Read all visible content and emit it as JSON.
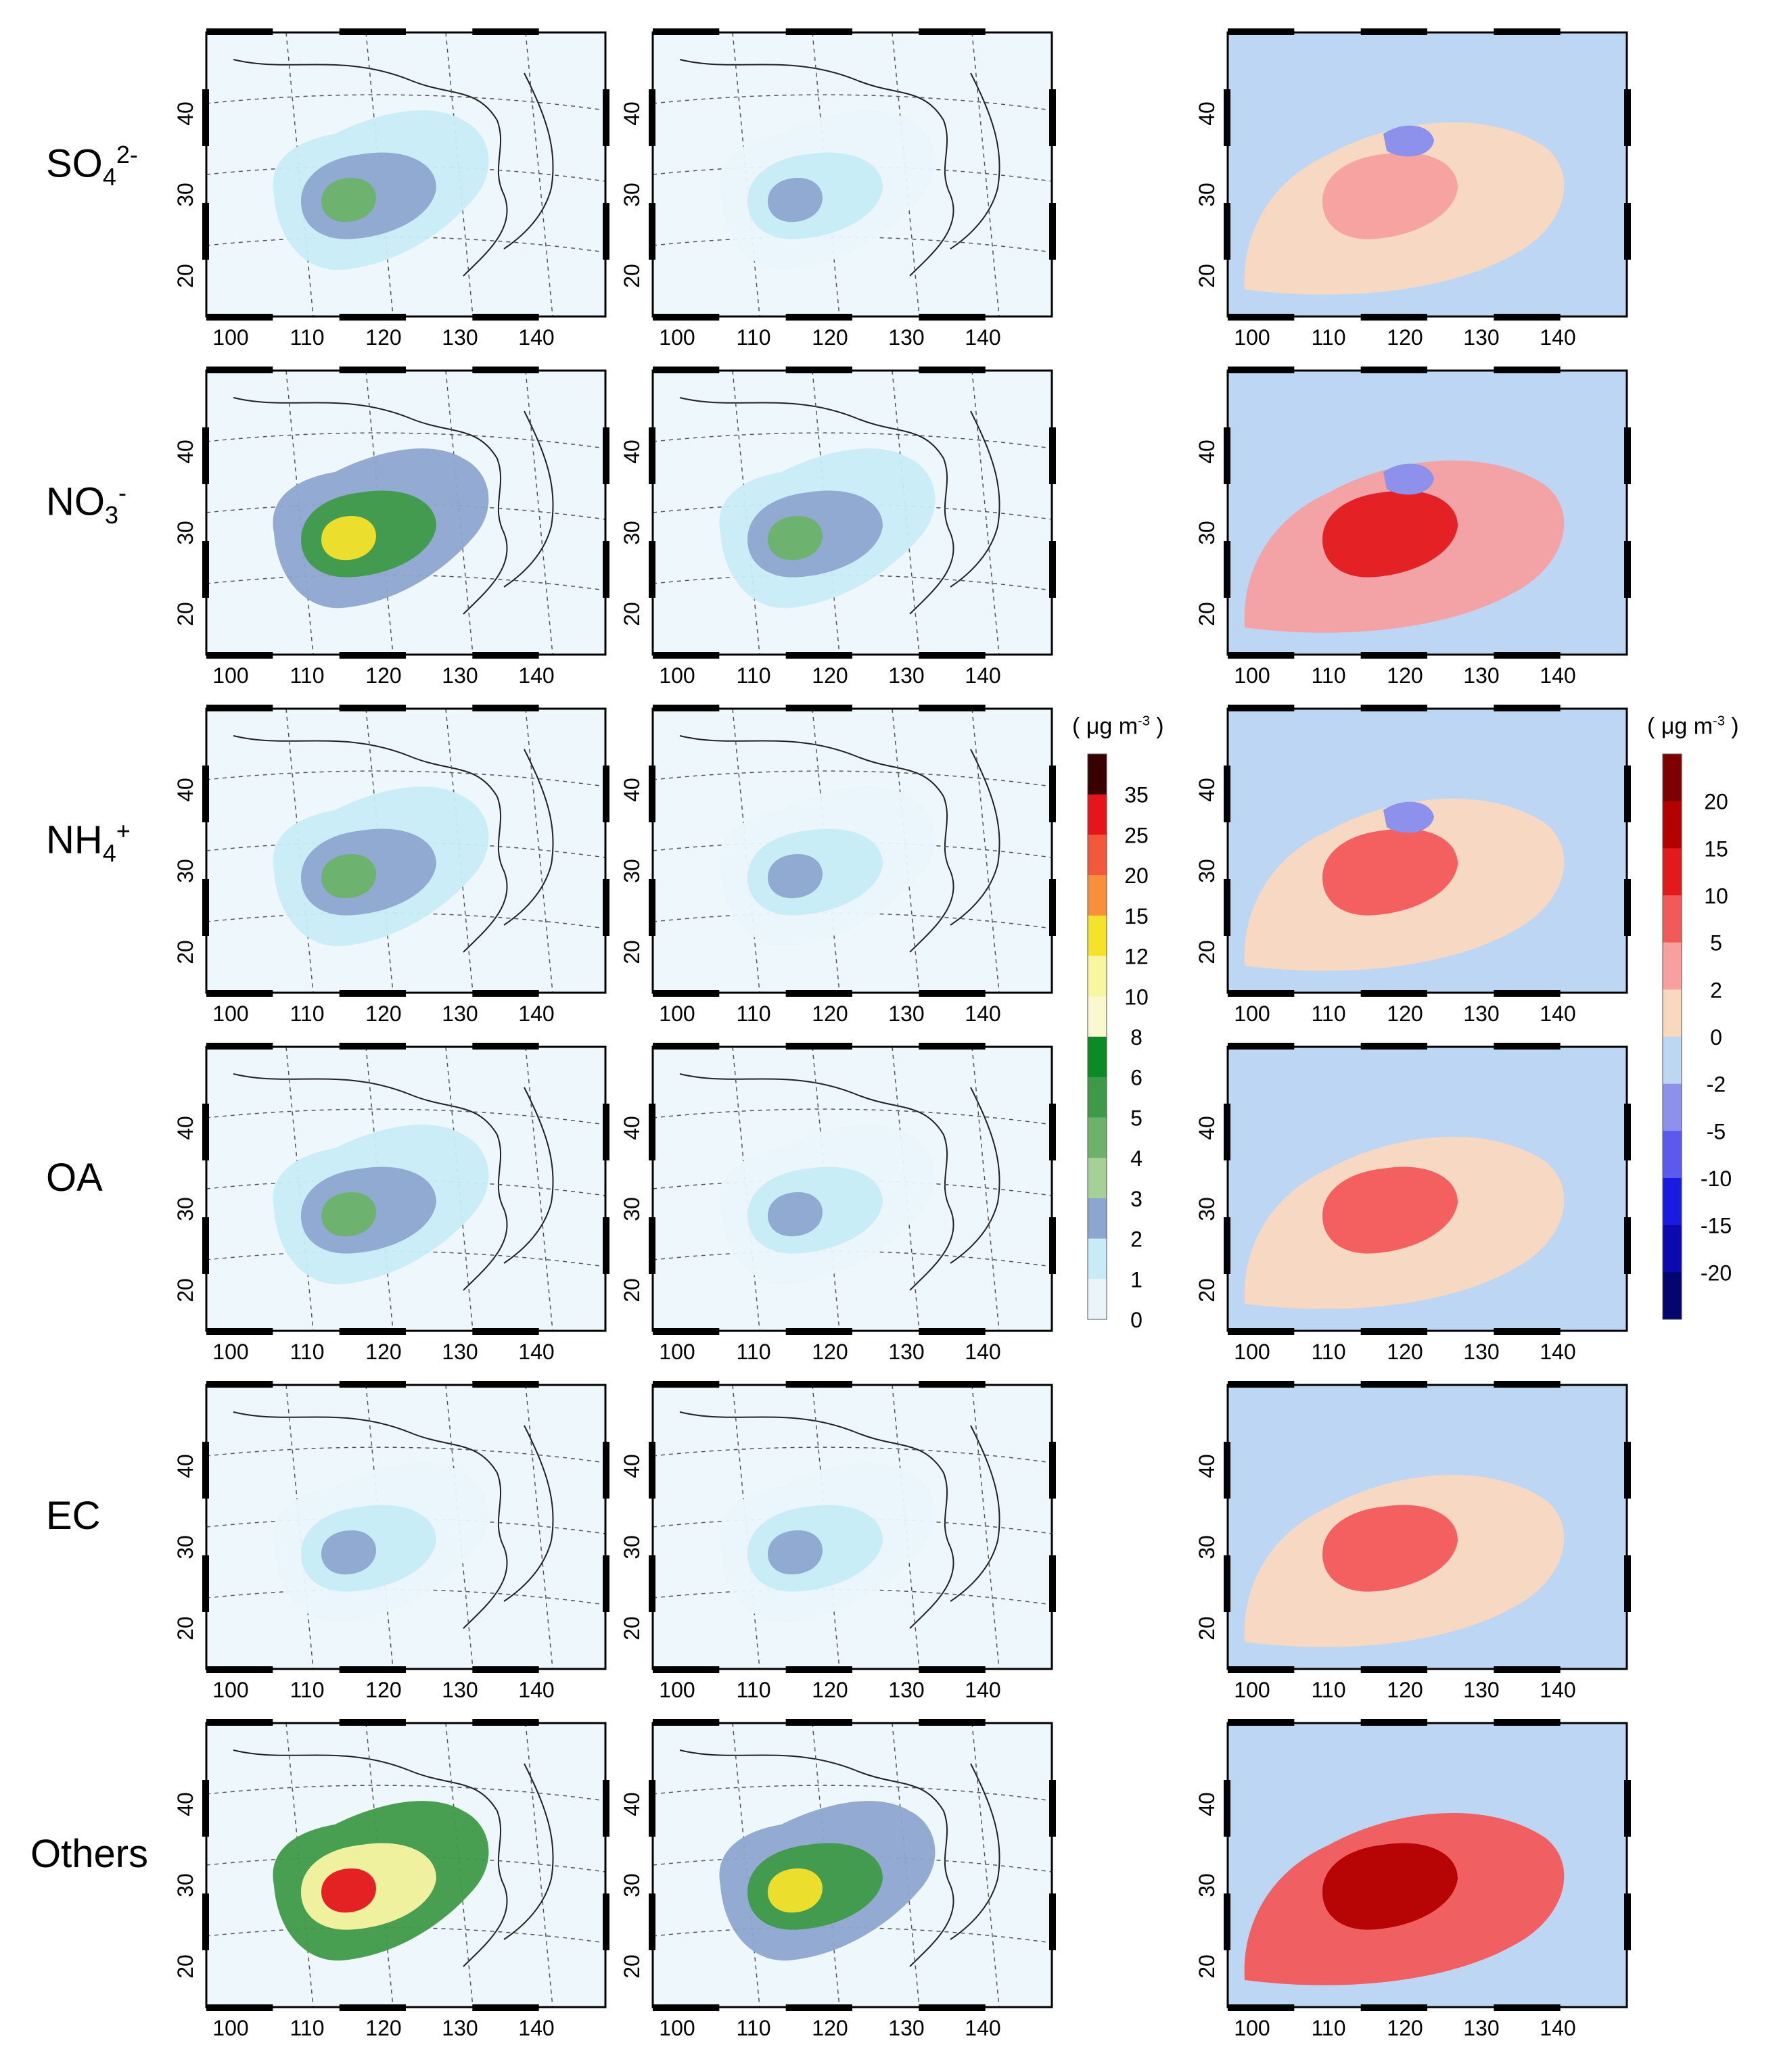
{
  "figure": {
    "rows": [
      {
        "species": "SO",
        "sub": "4",
        "sup": "2-",
        "level": 1
      },
      {
        "species": "NO",
        "sub": "3",
        "sup": "-",
        "level": 2
      },
      {
        "species": "NH",
        "sub": "4",
        "sup": "+",
        "level": 1
      },
      {
        "species": "OA",
        "sub": "",
        "sup": "",
        "level": 1
      },
      {
        "species": "EC",
        "sub": "",
        "sup": "",
        "level": 0
      },
      {
        "species": "Others",
        "sub": "",
        "sup": "",
        "level": 3
      }
    ],
    "diff_levels": [
      0,
      2,
      1,
      1,
      1,
      3
    ],
    "lon_ticks": [
      "100",
      "110",
      "120",
      "130",
      "140"
    ],
    "lat_ticks": [
      "20",
      "30",
      "40"
    ],
    "conc_colorbar": {
      "unit_prefix": "( μg m",
      "unit_exp": "-3",
      "unit_suffix": " )",
      "labels": [
        "35",
        "25",
        "20",
        "15",
        "12",
        "10",
        "8",
        "6",
        "5",
        "4",
        "3",
        "2",
        "1",
        "0"
      ],
      "colors": [
        "#3a0000",
        "#e4161c",
        "#f2593a",
        "#f88f3c",
        "#f5e22a",
        "#f9f6a2",
        "#fbf8cf",
        "#0c8a23",
        "#3e9a48",
        "#6db26a",
        "#a5d197",
        "#8da6d0",
        "#c7ecf7",
        "#e9f5fb"
      ]
    },
    "diff_colorbar": {
      "unit_prefix": "( μg m",
      "unit_exp": "-3",
      "unit_suffix": " )",
      "labels": [
        "20",
        "15",
        "10",
        "5",
        "2",
        "0",
        "-2",
        "-5",
        "-10",
        "-15",
        "-20"
      ],
      "colors": [
        "#7e0000",
        "#b30000",
        "#e31a1c",
        "#f25a5a",
        "#f6a0a0",
        "#fad8bf",
        "#bcd6f4",
        "#8d91ec",
        "#5a5aec",
        "#1a1ae0",
        "#0a0ab0",
        "#05056e"
      ]
    }
  }
}
